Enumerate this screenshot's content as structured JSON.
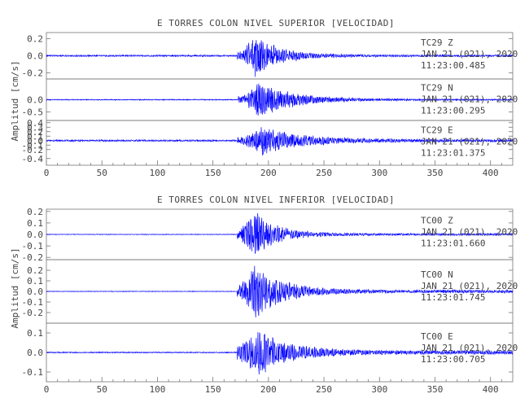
{
  "chart_data": [
    {
      "type": "line",
      "title": "E TORRES COLON NIVEL SUPERIOR [VELOCIDAD]",
      "xlabel": "",
      "ylabel": "Amplitud [cm/s]",
      "xlim": [
        0,
        420
      ],
      "x_ticks": [
        "0",
        "50",
        "100",
        "150",
        "200",
        "250",
        "300",
        "350",
        "400"
      ],
      "series": [
        {
          "name": "TC29  Z",
          "date": "JAN 21 (021), 2020",
          "time": "11:23:00.485",
          "ylim": [
            -0.27,
            0.27
          ],
          "y_ticks": [
            "0.2",
            "0.0",
            "-0.2"
          ],
          "onset": 172,
          "peak_t": 188,
          "peak": 0.26,
          "pre_amp": 0.01,
          "pre_onset_amp": 0.05,
          "coda_amp": 0.012,
          "decay": 22,
          "period": 1.6,
          "color": "#0000ff"
        },
        {
          "name": "TC29  N",
          "date": "JAN 21 (021), 2020",
          "time": "11:23:00.295",
          "ylim": [
            -0.85,
            0.85
          ],
          "y_ticks": [
            "0.0",
            "-0.5"
          ],
          "onset": 173,
          "peak_t": 192,
          "peak": 0.8,
          "pre_amp": 0.02,
          "pre_onset_amp": 0.15,
          "coda_amp": 0.03,
          "decay": 30,
          "period": 1.3,
          "color": "#0000ff"
        },
        {
          "name": "TC29  E",
          "date": "JAN 21 (021), 2020",
          "time": "11:23:01.375",
          "ylim": [
            -0.55,
            0.45
          ],
          "y_ticks": [
            "0.4",
            "0.3",
            "0.2",
            "0.1",
            "0.0",
            "-0.1",
            "-0.2",
            "-0.4"
          ],
          "onset": 172,
          "peak_t": 195,
          "peak": 0.35,
          "pre_amp": 0.02,
          "pre_onset_amp": 0.08,
          "coda_amp": 0.03,
          "decay": 35,
          "period": 1.5,
          "color": "#0000ff"
        }
      ]
    },
    {
      "type": "line",
      "title": "E TORRES COLON NIVEL INFERIOR [VELOCIDAD]",
      "xlabel": "",
      "ylabel": "Amplitud [cm/s]",
      "xlim": [
        0,
        420
      ],
      "x_ticks": [
        "0",
        "50",
        "100",
        "150",
        "200",
        "250",
        "300",
        "350",
        "400"
      ],
      "series": [
        {
          "name": "TC00  Z",
          "date": "JAN 21 (021), 2020",
          "time": "11:23:01.660",
          "ylim": [
            -0.22,
            0.22
          ],
          "y_ticks": [
            "0.2",
            "0.1",
            "0.0",
            "-0.1",
            "-0.2"
          ],
          "onset": 172,
          "peak_t": 188,
          "peak": 0.21,
          "pre_amp": 0.003,
          "pre_onset_amp": 0.05,
          "coda_amp": 0.01,
          "decay": 20,
          "period": 1.6,
          "color": "#0000ff"
        },
        {
          "name": "TC00  N",
          "date": "JAN 21 (021), 2020",
          "time": "11:23:01.745",
          "ylim": [
            -0.3,
            0.3
          ],
          "y_ticks": [
            "0.2",
            "0.1",
            "0.0",
            "-0.1",
            "-0.2"
          ],
          "onset": 172,
          "peak_t": 188,
          "peak": 0.28,
          "pre_amp": 0.003,
          "pre_onset_amp": 0.06,
          "coda_amp": 0.015,
          "decay": 25,
          "period": 1.5,
          "color": "#0000ff"
        },
        {
          "name": "TC00  E",
          "date": "JAN 21 (021), 2020",
          "time": "11:23:00.705",
          "ylim": [
            -0.15,
            0.15
          ],
          "y_ticks": [
            "0.1",
            "0.0",
            "-0.1"
          ],
          "onset": 172,
          "peak_t": 190,
          "peak": 0.13,
          "pre_amp": 0.003,
          "pre_onset_amp": 0.04,
          "coda_amp": 0.01,
          "decay": 28,
          "period": 1.5,
          "color": "#0000ff"
        }
      ]
    }
  ]
}
